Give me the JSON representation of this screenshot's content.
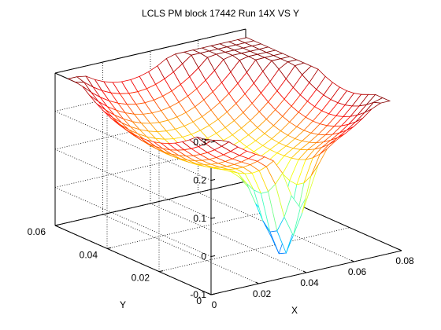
{
  "figure": {
    "title": "LCLS PM block 17442 Run 14X VS Y",
    "background": "#ffffff"
  },
  "chart_data": {
    "type": "surface-mesh",
    "title": "LCLS PM block 17442 Run 14X VS Y",
    "xlabel": "X",
    "ylabel": "Y",
    "zlabel": "",
    "xlim": [
      0,
      0.08
    ],
    "ylim": [
      0,
      0.06
    ],
    "zlim": [
      -0.1,
      0.3
    ],
    "x_ticks": [
      0,
      0.02,
      0.04,
      0.06,
      0.08
    ],
    "x_tick_labels": [
      "0",
      "0.02",
      "0.04",
      "0.06",
      "0.08"
    ],
    "y_ticks": [
      0,
      0.02,
      0.04,
      0.06
    ],
    "y_tick_labels": [
      "0",
      "0.02",
      "0.04",
      "0.06"
    ],
    "z_ticks": [
      -0.1,
      0,
      0.1,
      0.2,
      0.3
    ],
    "z_tick_labels": [
      "-0.1",
      "0",
      "0.1",
      "0.2",
      "0.3"
    ],
    "grid": "on",
    "box": "on",
    "colormap": "jet",
    "surface_extent": {
      "x": [
        0,
        0.075
      ],
      "y": [
        0,
        0.055
      ]
    },
    "mesh_resolution": 21,
    "surface_shape": "saddle-shaped bowl: z about 0.1 at the center rising to about 0.3 along edges and corners, with a narrow dip to about -0.1 near the X-axis midpoint at the front edge and a small spike near the center",
    "surface_points": [
      {
        "x": 0,
        "y": 0,
        "z": 0.18
      },
      {
        "x": 0,
        "y": 0.055,
        "z": 0.2
      },
      {
        "x": 0.075,
        "y": 0.055,
        "z": 0.3
      },
      {
        "x": 0.075,
        "y": 0,
        "z": 0.2
      },
      {
        "x": 0.0375,
        "y": 0.0275,
        "z": 0.1
      },
      {
        "x": 0.0375,
        "y": 0,
        "z": -0.1
      }
    ]
  }
}
